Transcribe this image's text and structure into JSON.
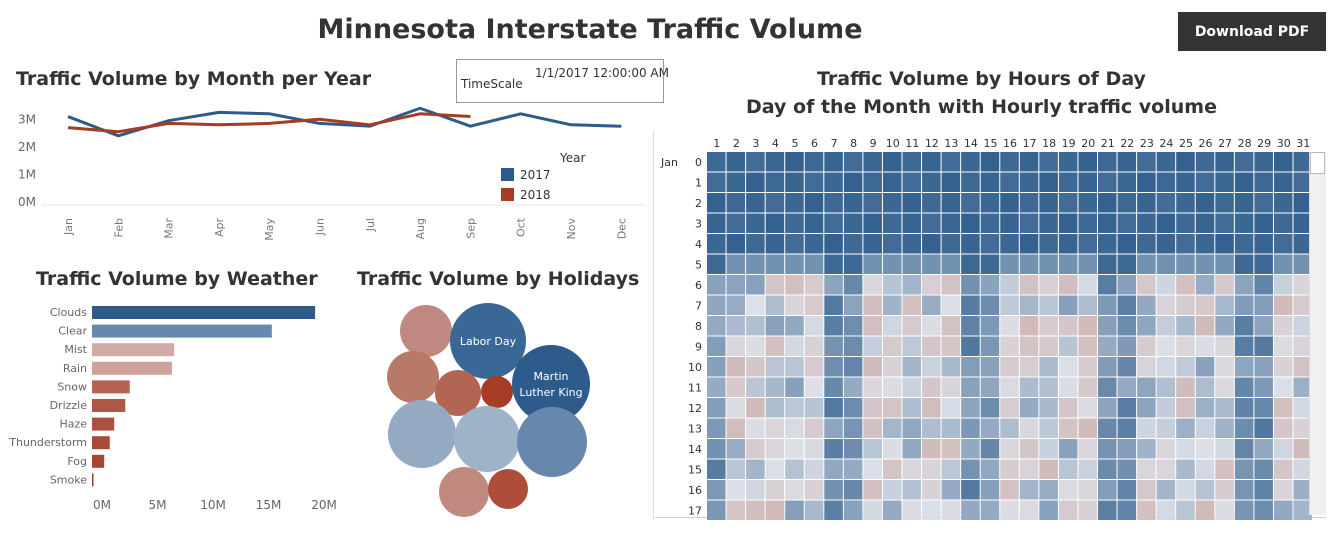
{
  "dashboard": {
    "title": "Minnesota Interstate Traffic Volume",
    "download_label": "Download PDF"
  },
  "timescale": {
    "label": "TimeScale",
    "value": "1/1/2017 12:00:00 AM"
  },
  "colors": {
    "series_2017": "#2d5c8c",
    "series_2018": "#a63c24",
    "heat_high": "#2d5c8c",
    "heat_low": "#c9a09a"
  },
  "line_chart": {
    "title": "Traffic Volume by Month per Year",
    "chart_data": {
      "type": "line",
      "categories": [
        "Jan",
        "Feb",
        "Mar",
        "Apr",
        "May",
        "Jun",
        "Jul",
        "Aug",
        "Sep",
        "Oct",
        "Nov",
        "Dec"
      ],
      "y_ticks": [
        "3M",
        "2M",
        "1M",
        "0M"
      ],
      "y_tick_values": [
        3000000,
        2000000,
        1000000,
        0
      ],
      "ylim": [
        0,
        3700000
      ],
      "legend_title": "Year",
      "series": [
        {
          "name": "2017",
          "values": [
            3100000,
            2400000,
            2950000,
            3250000,
            3200000,
            2850000,
            2750000,
            3400000,
            2750000,
            3200000,
            2800000,
            2750000
          ]
        },
        {
          "name": "2018",
          "values": [
            2700000,
            2550000,
            2850000,
            2800000,
            2850000,
            3000000,
            2800000,
            3200000,
            3100000,
            null,
            null,
            null
          ]
        }
      ]
    }
  },
  "weather_chart": {
    "title": "Traffic Volume by Weather",
    "chart_data": {
      "type": "bar",
      "categories": [
        "Clouds",
        "Clear",
        "Mist",
        "Rain",
        "Snow",
        "Drizzle",
        "Haze",
        "Thunderstorm",
        "Fog",
        "Smoke"
      ],
      "values": [
        20100000,
        16200000,
        7400000,
        7200000,
        3400000,
        3000000,
        2000000,
        1600000,
        1100000,
        100000
      ],
      "colors": [
        "#2d5c8c",
        "#6789ad",
        "#d2aaa5",
        "#cda29d",
        "#b36453",
        "#ae5847",
        "#a9503f",
        "#a84c39",
        "#a54632",
        "#a63c24"
      ],
      "x_ticks": [
        "0M",
        "5M",
        "10M",
        "15M",
        "20M"
      ],
      "x_tick_values": [
        0,
        5000000,
        10000000,
        15000000,
        20000000
      ],
      "xlim": [
        0,
        20000000
      ]
    }
  },
  "holidays_chart": {
    "title": "Traffic Volume by Holidays",
    "bubbles": [
      {
        "label": "",
        "color": "#c08880"
      },
      {
        "label": "Labor Day",
        "color": "#3a6896"
      },
      {
        "label": "",
        "color": "#b97969"
      },
      {
        "label": "",
        "color": "#b36553"
      },
      {
        "label": "",
        "color": "#a63c24"
      },
      {
        "label": "Martin\nLuther King",
        "color": "#2d5c8c"
      },
      {
        "label": "",
        "color": "#94aac3"
      },
      {
        "label": "",
        "color": "#9eb2c8"
      },
      {
        "label": "",
        "color": "#6788ac"
      },
      {
        "label": "",
        "color": "#c08a80"
      },
      {
        "label": "",
        "color": "#ad4d3a"
      }
    ]
  },
  "heatmap": {
    "title_line1": "Traffic Volume by Hours of Day",
    "title_line2": "Day of the Month with Hourly traffic volume",
    "month_label": "Jan",
    "days": [
      "1",
      "2",
      "3",
      "4",
      "5",
      "6",
      "7",
      "8",
      "9",
      "10",
      "11",
      "12",
      "13",
      "14",
      "15",
      "16",
      "17",
      "18",
      "19",
      "20",
      "21",
      "22",
      "23",
      "24",
      "25",
      "26",
      "27",
      "28",
      "29",
      "30",
      "31"
    ],
    "hours": [
      "0",
      "1",
      "2",
      "3",
      "4",
      "5",
      "6",
      "7",
      "8",
      "9",
      "10",
      "11",
      "12",
      "13",
      "14",
      "15",
      "16",
      "17"
    ]
  }
}
